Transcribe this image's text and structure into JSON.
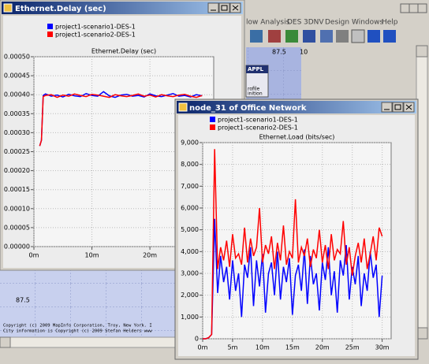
{
  "app": {
    "menu": [
      "low Analysis",
      "DES",
      "3DNV",
      "Design",
      "Windows",
      "Help"
    ],
    "ruler": [
      "87.5",
      "10"
    ],
    "node_labels": [
      "APPL",
      "rofile",
      "inition"
    ],
    "map_label": "87.5",
    "copyright": [
      "Copyright (c) 2009 MapInfo Corporation, Troy, New York. I",
      "City information is Copyright (c) 2009 Stefan Helders www"
    ]
  },
  "windows": [
    {
      "title": "Ethernet.Delay (sec)"
    },
    {
      "title": "node_31 of Office Network"
    }
  ],
  "chart_data": [
    {
      "type": "line",
      "title": "Ethernet.Delay (sec)",
      "x": [
        1,
        1.3,
        1.6,
        2,
        3,
        4,
        5,
        6,
        7,
        8,
        9,
        10,
        11,
        12,
        13,
        14,
        15,
        16,
        17,
        18,
        19,
        20,
        21,
        22,
        23,
        24,
        25,
        26,
        27,
        28,
        29
      ],
      "series": [
        {
          "name": "project1-scenario1-DES-1",
          "color": "#0000ff",
          "values": [
            0.000265,
            0.00028,
            0.000398,
            0.000402,
            0.000396,
            0.000399,
            0.000394,
            0.000401,
            0.000397,
            0.000395,
            0.000403,
            0.000398,
            0.000396,
            0.000408,
            0.000397,
            0.000393,
            0.000399,
            0.000401,
            0.000396,
            0.000398,
            0.000394,
            0.000402,
            0.000397,
            0.000395,
            0.000399,
            0.000403,
            0.000396,
            0.000398,
            0.000394,
            0.0004,
            0.000397
          ]
        },
        {
          "name": "project1-scenario2-DES-1",
          "color": "#ff0000",
          "values": [
            0.000265,
            0.00028,
            0.000395,
            0.000398,
            0.0004,
            0.000393,
            0.000399,
            0.000396,
            0.000402,
            0.000398,
            0.000395,
            0.000401,
            0.000399,
            0.000396,
            0.000393,
            0.0004,
            0.000397,
            0.000395,
            0.000398,
            0.000402,
            0.000396,
            0.000399,
            0.000394,
            0.0004,
            0.000397,
            0.000395,
            0.000399,
            0.000401,
            0.000396,
            0.000393,
            0.000398
          ]
        }
      ],
      "xlim": [
        0,
        31
      ],
      "xticks": [
        {
          "value": 0,
          "label": "0m"
        },
        {
          "value": 10,
          "label": "10m"
        },
        {
          "value": 20,
          "label": "20m"
        }
      ],
      "ylim": [
        0,
        0.0005
      ],
      "yticks": [
        {
          "value": 0,
          "label": "0.00000"
        },
        {
          "value": 5e-05,
          "label": "0.00005"
        },
        {
          "value": 0.0001,
          "label": "0.00010"
        },
        {
          "value": 0.00015,
          "label": "0.00015"
        },
        {
          "value": 0.0002,
          "label": "0.00020"
        },
        {
          "value": 0.00025,
          "label": "0.00025"
        },
        {
          "value": 0.0003,
          "label": "0.00030"
        },
        {
          "value": 0.00035,
          "label": "0.00035"
        },
        {
          "value": 0.0004,
          "label": "0.00040"
        },
        {
          "value": 0.00045,
          "label": "0.00045"
        },
        {
          "value": 0.0005,
          "label": "0.00050"
        }
      ],
      "grid": true
    },
    {
      "type": "line",
      "title": "Ethernet.Load (bits/sec)",
      "x": [
        0,
        0.5,
        1,
        1.5,
        2,
        2.5,
        3,
        3.5,
        4,
        4.5,
        5,
        5.5,
        6,
        6.5,
        7,
        7.5,
        8,
        8.5,
        9,
        9.5,
        10,
        10.5,
        11,
        11.5,
        12,
        12.5,
        13,
        13.5,
        14,
        14.5,
        15,
        15.5,
        16,
        16.5,
        17,
        17.5,
        18,
        18.5,
        19,
        19.5,
        20,
        20.5,
        21,
        21.5,
        22,
        22.5,
        23,
        23.5,
        24,
        24.5,
        25,
        25.5,
        26,
        26.5,
        27,
        27.5,
        28,
        28.5,
        29,
        29.5,
        30
      ],
      "series": [
        {
          "name": "project1-scenario1-DES-1",
          "color": "#0000ff",
          "values": [
            0,
            0,
            50,
            200,
            5500,
            2100,
            3800,
            2600,
            3300,
            1800,
            3600,
            2200,
            3000,
            1000,
            3400,
            2800,
            4200,
            1500,
            3600,
            2400,
            3900,
            1200,
            3000,
            3500,
            2000,
            4000,
            1800,
            3300,
            2600,
            3700,
            1100,
            2900,
            3400,
            2200,
            4100,
            1600,
            3800,
            2500,
            3000,
            1300,
            3500,
            2700,
            4200,
            2000,
            3100,
            1200,
            3600,
            2900,
            4300,
            1800,
            3300,
            2500,
            3800,
            1500,
            3000,
            2200,
            4000,
            2800,
            3400,
            1000,
            2900
          ]
        },
        {
          "name": "project1-scenario2-DES-1",
          "color": "#ff0000",
          "values": [
            0,
            0,
            50,
            200,
            8700,
            3200,
            4200,
            3600,
            4500,
            3300,
            4800,
            3700,
            3900,
            3400,
            5100,
            3500,
            4600,
            3800,
            4200,
            6000,
            3500,
            4300,
            3900,
            4700,
            3200,
            4400,
            3600,
            5200,
            3400,
            4000,
            3700,
            6400,
            3500,
            4200,
            3800,
            4600,
            3300,
            4100,
            3700,
            5000,
            3500,
            4300,
            3200,
            4800,
            3600,
            4100,
            3900,
            5400,
            3400,
            4200,
            2900,
            3800,
            4400,
            3500,
            4600,
            3200,
            3900,
            4700,
            3600,
            5100,
            4700
          ]
        }
      ],
      "xlim": [
        0,
        31.5
      ],
      "xticks": [
        {
          "value": 0,
          "label": "0m"
        },
        {
          "value": 5,
          "label": "5m"
        },
        {
          "value": 10,
          "label": "10m"
        },
        {
          "value": 15,
          "label": "15m"
        },
        {
          "value": 20,
          "label": "20m"
        },
        {
          "value": 25,
          "label": "25m"
        },
        {
          "value": 30,
          "label": "30m"
        }
      ],
      "ylim": [
        0,
        9000
      ],
      "yticks": [
        0,
        {
          "value": 1000,
          "label": "1,000"
        },
        {
          "value": 2000,
          "label": "2,000"
        },
        {
          "value": 3000,
          "label": "3,000"
        },
        {
          "value": 4000,
          "label": "4,000"
        },
        {
          "value": 5000,
          "label": "5,000"
        },
        {
          "value": 6000,
          "label": "6,000"
        },
        {
          "value": 7000,
          "label": "7,000"
        },
        {
          "value": 8000,
          "label": "8,000"
        },
        {
          "value": 9000,
          "label": "9,000"
        }
      ],
      "grid": true
    }
  ]
}
